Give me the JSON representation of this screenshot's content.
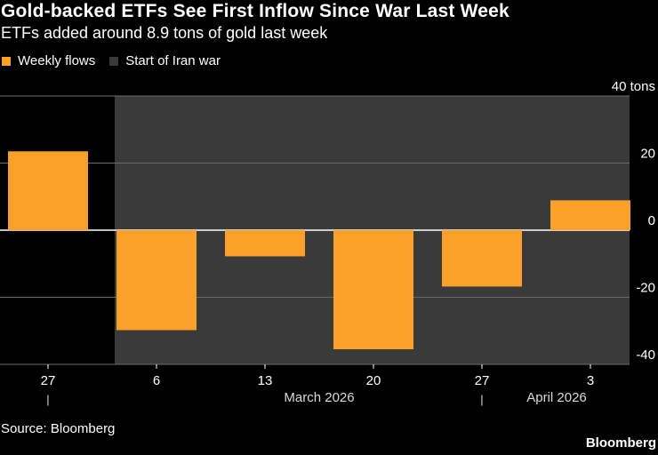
{
  "colors": {
    "background": "#000000",
    "bar": "#fba12a",
    "shade": "#3a3a3a",
    "gridline": "#6a6a6a",
    "text": "#ffffff",
    "muted": "#d9d9d9"
  },
  "header": {
    "title": "Gold-backed ETFs See First Inflow Since War Last Week",
    "subtitle": "ETFs added around 8.9 tons of gold last week"
  },
  "legend": [
    {
      "label": "Weekly flows",
      "color": "#fba12a"
    },
    {
      "label": "Start of Iran war",
      "color": "#3a3a3a"
    }
  ],
  "footer": {
    "source": "Source: Bloomberg",
    "brand": "Bloomberg"
  },
  "chart_data": {
    "type": "bar",
    "title": "Gold-backed ETFs See First Inflow Since War Last Week",
    "subtitle": "ETFs added around 8.9 tons of gold last week",
    "categories": [
      "27",
      "6",
      "13",
      "20",
      "27",
      "3"
    ],
    "series": [
      {
        "name": "Weekly flows",
        "values": [
          23.5,
          -29.8,
          -7.8,
          -35.5,
          -16.8,
          8.9
        ]
      }
    ],
    "ylim": [
      -40,
      40
    ],
    "yticks": [
      40,
      20,
      0,
      -20,
      -40
    ],
    "ytick_labels": [
      "40 tons",
      "20",
      "0",
      "-20",
      "-40"
    ],
    "y_axis_side": "right",
    "grid": true,
    "month_labels": [
      {
        "label": "March 2026",
        "from_category": 1,
        "to_category": 4
      },
      {
        "label": "April 2026",
        "from_category": 5,
        "to_category": 5
      }
    ],
    "month_separators": [
      "|",
      "|"
    ],
    "shaded_region": {
      "label": "Start of Iran war",
      "from_category": 1,
      "to_category": 5
    },
    "xlabel": "",
    "ylabel": "tons"
  }
}
